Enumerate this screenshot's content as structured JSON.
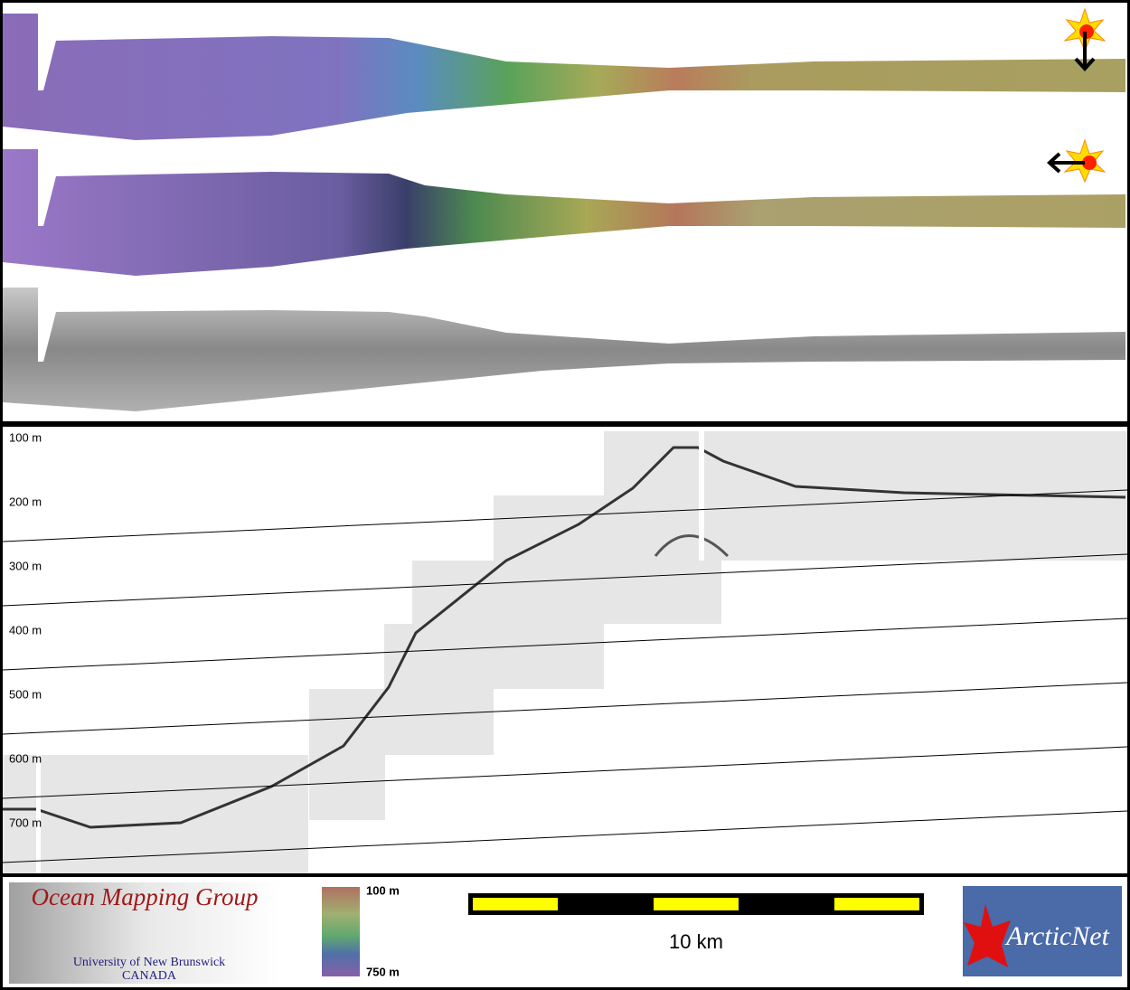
{
  "profile": {
    "depth_labels": [
      "100 m",
      "200 m",
      "300 m",
      "400 m",
      "500 m",
      "600 m",
      "700 m"
    ]
  },
  "logo": {
    "title": "Ocean Mapping Group",
    "university": "University of New Brunswick",
    "country": "CANADA"
  },
  "colorbar": {
    "top": "100 m",
    "bottom": "750 m"
  },
  "scale_bar": {
    "label": "10 km"
  },
  "partner": {
    "name": "ArcticNet"
  }
}
